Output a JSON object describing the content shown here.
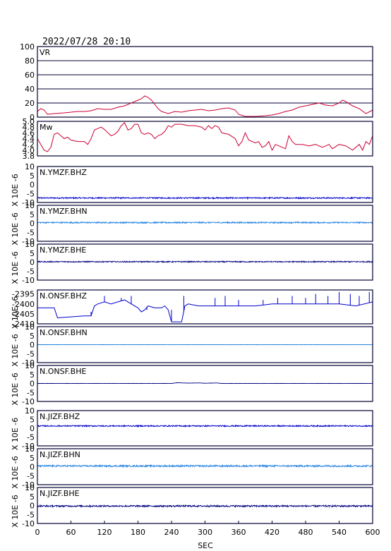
{
  "header": {
    "timestamp": "2022/07/28 20:10"
  },
  "colors": {
    "frame": "#000033",
    "text": "#000000",
    "vr_mw": "#cc0033",
    "blue_dark": "#0000cc",
    "blue_light": "#1f7fe0",
    "navy": "#000080"
  },
  "chart_data": {
    "type": "line",
    "xlabel": "SEC",
    "xlim": [
      0,
      600
    ],
    "xticks": [
      "0",
      "60",
      "120",
      "180",
      "240",
      "300",
      "360",
      "420",
      "480",
      "540",
      "600"
    ],
    "panels": [
      {
        "label": "VR",
        "ylabel": "",
        "ylim": [
          0,
          100
        ],
        "yticks": [
          "100",
          "80",
          "60",
          "40",
          "20",
          "0"
        ],
        "grid": true,
        "color": "#cc0033",
        "series": [
          [
            0,
            8
          ],
          [
            6,
            12
          ],
          [
            12,
            10
          ],
          [
            18,
            4
          ],
          [
            30,
            5
          ],
          [
            48,
            6
          ],
          [
            60,
            7
          ],
          [
            72,
            8
          ],
          [
            84,
            8
          ],
          [
            96,
            9
          ],
          [
            108,
            12
          ],
          [
            120,
            11
          ],
          [
            132,
            11
          ],
          [
            144,
            14
          ],
          [
            156,
            16
          ],
          [
            168,
            20
          ],
          [
            180,
            24
          ],
          [
            186,
            26
          ],
          [
            192,
            30
          ],
          [
            198,
            28
          ],
          [
            204,
            24
          ],
          [
            210,
            18
          ],
          [
            216,
            12
          ],
          [
            222,
            8
          ],
          [
            234,
            5
          ],
          [
            246,
            8
          ],
          [
            258,
            7
          ],
          [
            270,
            9
          ],
          [
            282,
            10
          ],
          [
            294,
            11
          ],
          [
            306,
            9
          ],
          [
            318,
            10
          ],
          [
            330,
            12
          ],
          [
            342,
            13
          ],
          [
            354,
            10
          ],
          [
            360,
            4
          ],
          [
            372,
            1
          ],
          [
            390,
            1
          ],
          [
            408,
            2
          ],
          [
            420,
            3
          ],
          [
            432,
            5
          ],
          [
            444,
            8
          ],
          [
            456,
            10
          ],
          [
            468,
            14
          ],
          [
            480,
            16
          ],
          [
            492,
            18
          ],
          [
            504,
            20
          ],
          [
            516,
            17
          ],
          [
            528,
            16
          ],
          [
            540,
            20
          ],
          [
            546,
            24
          ],
          [
            552,
            22
          ],
          [
            564,
            16
          ],
          [
            576,
            12
          ],
          [
            588,
            5
          ],
          [
            600,
            10
          ]
        ]
      },
      {
        "label": "Mw",
        "ylabel": "",
        "ylim": [
          3.8,
          5.0
        ],
        "yticks": [
          "5.0",
          "4.8",
          "4.6",
          "4.4",
          "4.2",
          "4.0",
          "3.8"
        ],
        "grid": false,
        "color": "#cc0033",
        "series": [
          [
            0,
            4.4
          ],
          [
            6,
            4.2
          ],
          [
            12,
            4.0
          ],
          [
            18,
            3.95
          ],
          [
            24,
            4.1
          ],
          [
            30,
            4.55
          ],
          [
            36,
            4.6
          ],
          [
            42,
            4.5
          ],
          [
            48,
            4.4
          ],
          [
            54,
            4.45
          ],
          [
            60,
            4.35
          ],
          [
            72,
            4.3
          ],
          [
            84,
            4.3
          ],
          [
            90,
            4.2
          ],
          [
            96,
            4.4
          ],
          [
            102,
            4.7
          ],
          [
            108,
            4.75
          ],
          [
            114,
            4.8
          ],
          [
            120,
            4.72
          ],
          [
            126,
            4.6
          ],
          [
            132,
            4.5
          ],
          [
            138,
            4.55
          ],
          [
            144,
            4.65
          ],
          [
            150,
            4.85
          ],
          [
            156,
            4.95
          ],
          [
            162,
            4.7
          ],
          [
            168,
            4.75
          ],
          [
            174,
            4.9
          ],
          [
            180,
            4.9
          ],
          [
            186,
            4.6
          ],
          [
            192,
            4.55
          ],
          [
            198,
            4.6
          ],
          [
            204,
            4.55
          ],
          [
            210,
            4.4
          ],
          [
            216,
            4.5
          ],
          [
            222,
            4.55
          ],
          [
            228,
            4.65
          ],
          [
            234,
            4.85
          ],
          [
            240,
            4.8
          ],
          [
            246,
            4.9
          ],
          [
            258,
            4.9
          ],
          [
            270,
            4.85
          ],
          [
            282,
            4.85
          ],
          [
            294,
            4.8
          ],
          [
            300,
            4.7
          ],
          [
            306,
            4.85
          ],
          [
            312,
            4.75
          ],
          [
            318,
            4.85
          ],
          [
            324,
            4.8
          ],
          [
            330,
            4.6
          ],
          [
            342,
            4.55
          ],
          [
            354,
            4.4
          ],
          [
            360,
            4.15
          ],
          [
            366,
            4.3
          ],
          [
            372,
            4.6
          ],
          [
            378,
            4.35
          ],
          [
            390,
            4.25
          ],
          [
            396,
            4.3
          ],
          [
            402,
            4.1
          ],
          [
            408,
            4.15
          ],
          [
            414,
            4.3
          ],
          [
            420,
            4.0
          ],
          [
            426,
            4.2
          ],
          [
            432,
            4.15
          ],
          [
            444,
            4.05
          ],
          [
            450,
            4.5
          ],
          [
            456,
            4.3
          ],
          [
            462,
            4.2
          ],
          [
            474,
            4.2
          ],
          [
            486,
            4.15
          ],
          [
            498,
            4.2
          ],
          [
            510,
            4.1
          ],
          [
            522,
            4.2
          ],
          [
            528,
            4.05
          ],
          [
            540,
            4.2
          ],
          [
            552,
            4.15
          ],
          [
            564,
            4.0
          ],
          [
            576,
            4.2
          ],
          [
            582,
            4.0
          ],
          [
            588,
            4.3
          ],
          [
            594,
            4.2
          ],
          [
            600,
            4.5
          ]
        ]
      },
      {
        "label": "N.YMZF.BHZ",
        "ylabel": "X 10E -6",
        "ylim": [
          -10,
          10
        ],
        "yticks": [
          "10",
          "5",
          "0",
          "-5",
          "-10"
        ],
        "grid": false,
        "color": "#0000cc",
        "baseline": -7.5,
        "noise": 0.35
      },
      {
        "label": "N.YMZF.BHN",
        "ylabel": "X 10E -6",
        "ylim": [
          -10,
          10
        ],
        "yticks": [
          "10",
          "5",
          "0",
          "-5",
          "-10"
        ],
        "grid": false,
        "color": "#1f7fe0",
        "baseline": 0.4,
        "noise": 0.35
      },
      {
        "label": "N.YMZF.BHE",
        "ylabel": "X 10E -6",
        "ylim": [
          -10,
          10
        ],
        "yticks": [
          "10",
          "5",
          "0",
          "-5",
          "-10"
        ],
        "grid": false,
        "color": "#000080",
        "baseline": 0.2,
        "noise": 0.3
      },
      {
        "label": "N.ONSF.BHZ",
        "ylabel": "X 10E -6",
        "ylim": [
          -2410,
          -2393
        ],
        "yticks": [
          "-2395",
          "-2400",
          "-2405",
          "-2410"
        ],
        "grid": false,
        "color": "#0000cc",
        "series": [
          [
            0,
            -2402
          ],
          [
            30,
            -2402
          ],
          [
            36,
            -2407
          ],
          [
            84,
            -2406
          ],
          [
            96,
            -2406
          ],
          [
            102,
            -2401
          ],
          [
            108,
            -2400
          ],
          [
            120,
            -2399
          ],
          [
            132,
            -2400
          ],
          [
            144,
            -2399
          ],
          [
            156,
            -2398
          ],
          [
            168,
            -2400
          ],
          [
            180,
            -2402
          ],
          [
            186,
            -2404
          ],
          [
            192,
            -2403
          ],
          [
            198,
            -2401
          ],
          [
            210,
            -2402
          ],
          [
            222,
            -2402
          ],
          [
            228,
            -2401
          ],
          [
            234,
            -2403
          ],
          [
            240,
            -2409
          ],
          [
            252,
            -2409
          ],
          [
            258,
            -2409
          ],
          [
            264,
            -2401
          ],
          [
            270,
            -2400
          ],
          [
            288,
            -2401
          ],
          [
            300,
            -2401
          ],
          [
            330,
            -2401
          ],
          [
            360,
            -2401
          ],
          [
            390,
            -2401
          ],
          [
            420,
            -2400
          ],
          [
            450,
            -2400
          ],
          [
            480,
            -2400
          ],
          [
            510,
            -2400
          ],
          [
            540,
            -2400
          ],
          [
            570,
            -2401
          ],
          [
            600,
            -2399
          ]
        ],
        "spikes": [
          [
            96,
            -2404
          ],
          [
            120,
            -2396
          ],
          [
            150,
            -2397
          ],
          [
            168,
            -2396
          ],
          [
            196,
            -2403
          ],
          [
            240,
            -2403
          ],
          [
            262,
            -2396
          ],
          [
            318,
            -2397
          ],
          [
            336,
            -2396
          ],
          [
            360,
            -2398
          ],
          [
            404,
            -2398
          ],
          [
            430,
            -2397
          ],
          [
            456,
            -2396
          ],
          [
            480,
            -2397
          ],
          [
            498,
            -2395
          ],
          [
            520,
            -2396
          ],
          [
            540,
            -2394
          ],
          [
            560,
            -2395
          ],
          [
            576,
            -2396
          ],
          [
            594,
            -2394
          ]
        ]
      },
      {
        "label": "N.ONSF.BHN",
        "ylabel": "X 10E -6",
        "ylim": [
          -10,
          10
        ],
        "yticks": [
          "10",
          "5",
          "0",
          "-5",
          "-10"
        ],
        "grid": false,
        "color": "#1f7fe0",
        "baseline": 0.0,
        "noise": 0.05
      },
      {
        "label": "N.ONSF.BHE",
        "ylabel": "X 10E -6",
        "ylim": [
          -10,
          10
        ],
        "yticks": [
          "10",
          "5",
          "0",
          "-5",
          "-10"
        ],
        "grid": false,
        "color": "#000080",
        "baseline": 0.0,
        "noise": 0.05,
        "bump": [
          [
            240,
            0.0
          ],
          [
            250,
            0.4
          ],
          [
            270,
            0.2
          ],
          [
            290,
            0.3
          ],
          [
            300,
            0.1
          ],
          [
            320,
            0.3
          ],
          [
            330,
            0.0
          ]
        ]
      },
      {
        "label": "N.JIZF.BHZ",
        "ylabel": "X 10E -6",
        "ylim": [
          -10,
          10
        ],
        "yticks": [
          "10",
          "5",
          "0",
          "-5",
          "-10"
        ],
        "grid": false,
        "color": "#0000cc",
        "baseline": 1.3,
        "noise": 0.35
      },
      {
        "label": "N.JIZF.BHN",
        "ylabel": "X 10E -6",
        "ylim": [
          -10,
          10
        ],
        "yticks": [
          "10",
          "5",
          "0",
          "-5",
          "-10"
        ],
        "grid": false,
        "color": "#1f7fe0",
        "baseline": 0.4,
        "noise": 0.45
      },
      {
        "label": "N.JIZF.BHE",
        "ylabel": "X 10E -6",
        "ylim": [
          -10,
          10
        ],
        "yticks": [
          "10",
          "5",
          "0",
          "-5",
          "-10"
        ],
        "grid": false,
        "color": "#000080",
        "baseline": -0.3,
        "noise": 0.45
      }
    ]
  }
}
